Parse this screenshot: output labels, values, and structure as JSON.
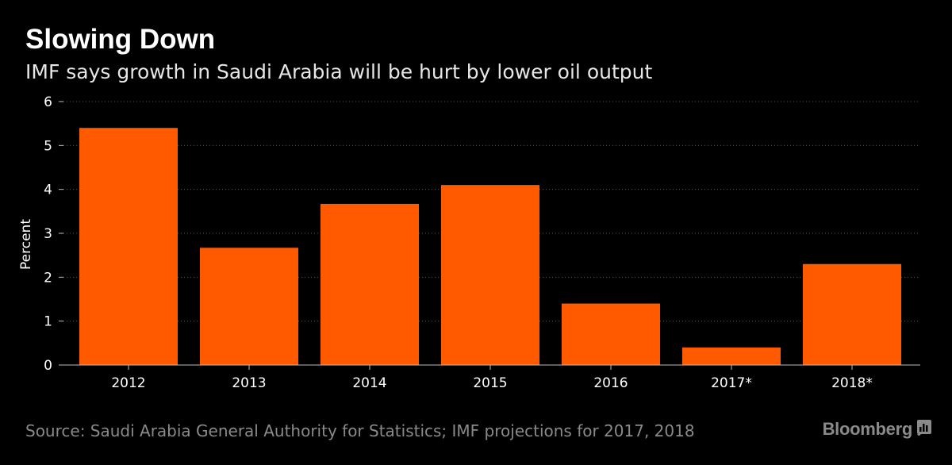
{
  "header": {
    "title": "Slowing Down",
    "subtitle": "IMF says growth in Saudi Arabia will be hurt by lower oil output"
  },
  "footer": {
    "source": "Source: Saudi Arabia General Authority for Statistics; IMF projections for 2017, 2018",
    "brand": "Bloomberg",
    "brand_icon": "bloomberg-terminal-icon"
  },
  "colors": {
    "background": "#000000",
    "bar": "#ff5a00",
    "grid": "#555555",
    "text": "#ffffff",
    "muted": "#8a8a8a"
  },
  "chart_data": {
    "type": "bar",
    "title": "Slowing Down",
    "subtitle": "IMF says growth in Saudi Arabia will be hurt by lower oil output",
    "categories": [
      "2012",
      "2013",
      "2014",
      "2015",
      "2016",
      "2017*",
      "2018*"
    ],
    "values": [
      5.4,
      2.67,
      3.67,
      4.1,
      1.4,
      0.4,
      2.3
    ],
    "xlabel": "",
    "ylabel": "Percent",
    "ylim": [
      0,
      6
    ],
    "yticks": [
      "0",
      "1",
      "2",
      "3",
      "4",
      "5",
      "6"
    ],
    "grid": true,
    "legend": "none"
  }
}
